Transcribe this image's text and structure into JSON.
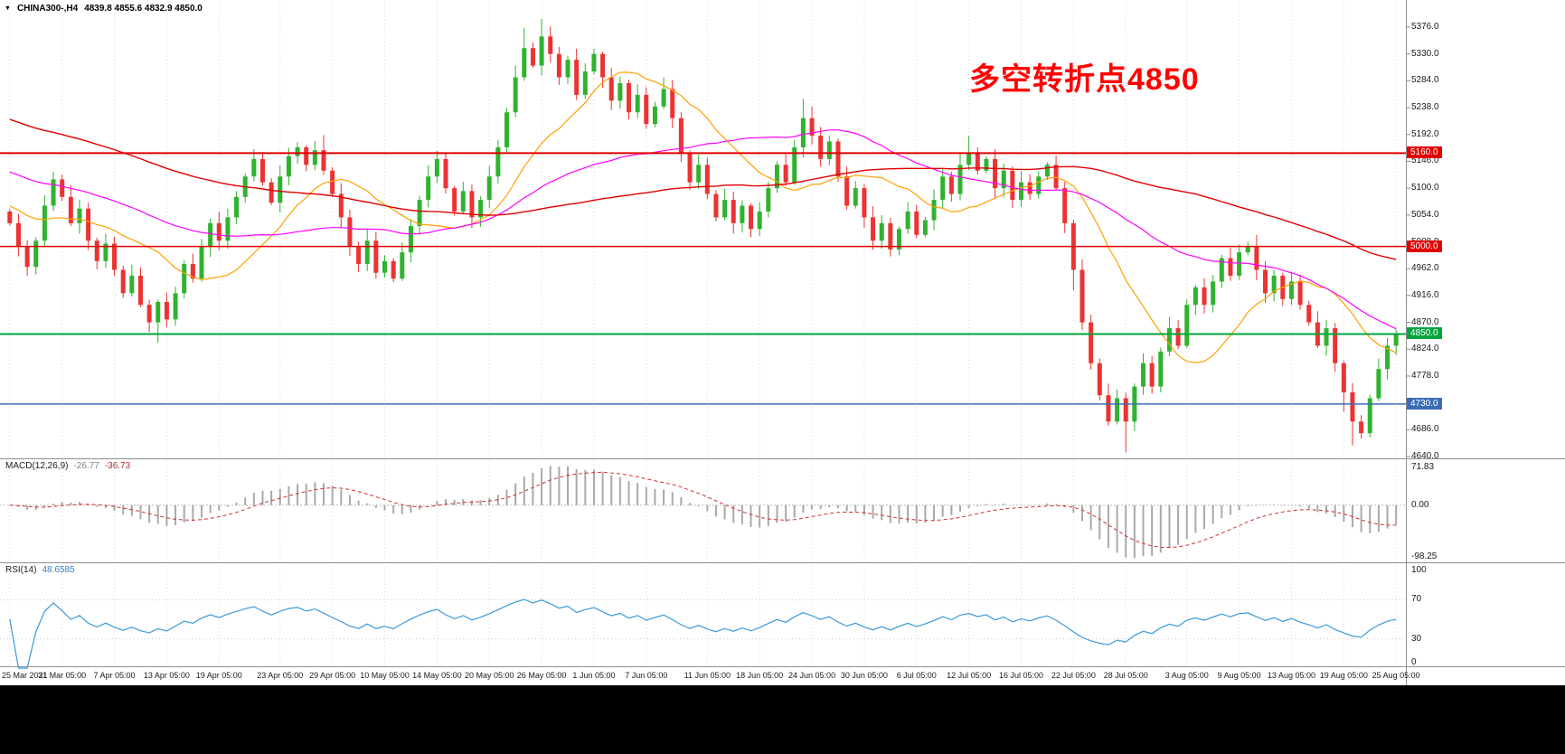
{
  "header": {
    "dropdown_icon": "▼",
    "symbol": "CHINA300-,H4",
    "ohlc": "4839.8 4855.6 4832.9 4850.0"
  },
  "annotation": {
    "text": "多空转折点4850",
    "color": "#FF0000"
  },
  "indicators": {
    "macd": {
      "name": "MACD(12,26,9)",
      "value_main": "-26.77",
      "value_signal": "-36.73",
      "range": [
        71.83,
        -98.25
      ],
      "axis": [
        {
          "text": "71.83",
          "value": 71.83
        },
        {
          "text": "0.00",
          "value": 0
        },
        {
          "text": "-98.25",
          "value": -98.25
        }
      ],
      "histogram_color": "#A9A9A9",
      "signal_color": "#D03030"
    },
    "rsi": {
      "name": "RSI(14)",
      "value": "48.6585",
      "axis": [
        {
          "text": "100",
          "value": 100
        },
        {
          "text": "70",
          "value": 70
        },
        {
          "text": "30",
          "value": 30
        },
        {
          "text": "0",
          "value": 0
        }
      ],
      "levels": [
        70,
        30
      ],
      "line_color": "#3A9AD9"
    }
  },
  "chart_data": {
    "type": "candlestick",
    "symbol": "CHINA300-",
    "timeframe": "H4",
    "current_price": 4850.0,
    "x_labels": [
      "25 Mar 2021",
      "31 Mar 05:00",
      "7 Apr 05:00",
      "13 Apr 05:00",
      "19 Apr 05:00",
      "23 Apr 05:00",
      "29 Apr 05:00",
      "10 May 05:00",
      "14 May 05:00",
      "20 May 05:00",
      "26 May 05:00",
      "1 Jun 05:00",
      "7 Jun 05:00",
      "11 Jun 05:00",
      "18 Jun 05:00",
      "24 Jun 05:00",
      "30 Jun 05:00",
      "6 Jul 05:00",
      "12 Jul 05:00",
      "16 Jul 05:00",
      "22 Jul 05:00",
      "28 Jul 05:00",
      "3 Aug 05:00",
      "9 Aug 05:00",
      "13 Aug 05:00",
      "19 Aug 05:00",
      "25 Aug 05:00"
    ],
    "y_ticks": [
      5376,
      5330,
      5284,
      5238,
      5192,
      5146,
      5100,
      5054,
      5008,
      4962,
      4916,
      4870,
      4824,
      4778,
      4732,
      4686,
      4640
    ],
    "y_tick_labels": [
      "5376.0",
      "5330.0",
      "5284.0",
      "5238.0",
      "5192.0",
      "5146.0",
      "5100.0",
      "5054.0",
      "5008.0",
      "4962.0",
      "4916.0",
      "4870.0",
      "4824.0",
      "4778.0",
      "4732.0",
      "4686.0",
      "4640.0"
    ],
    "first_open": 5060,
    "closes": [
      5040,
      5000,
      4965,
      5010,
      5070,
      5115,
      5085,
      5040,
      5065,
      5010,
      4975,
      5005,
      4960,
      4920,
      4950,
      4900,
      4870,
      4905,
      4875,
      4920,
      4970,
      4945,
      5000,
      5040,
      5010,
      5050,
      5085,
      5120,
      5150,
      5110,
      5075,
      5120,
      5155,
      5170,
      5140,
      5165,
      5130,
      5090,
      5050,
      5000,
      4970,
      5010,
      4955,
      4975,
      4945,
      4990,
      5035,
      5080,
      5120,
      5150,
      5100,
      5060,
      5095,
      5050,
      5080,
      5120,
      5170,
      5230,
      5290,
      5340,
      5310,
      5360,
      5330,
      5290,
      5320,
      5260,
      5300,
      5330,
      5290,
      5250,
      5280,
      5230,
      5260,
      5210,
      5240,
      5270,
      5220,
      5160,
      5110,
      5140,
      5090,
      5050,
      5080,
      5040,
      5070,
      5030,
      5060,
      5100,
      5140,
      5110,
      5170,
      5220,
      5190,
      5150,
      5180,
      5120,
      5070,
      5100,
      5050,
      5010,
      5040,
      4995,
      5030,
      5060,
      5020,
      5045,
      5080,
      5120,
      5090,
      5140,
      5160,
      5130,
      5150,
      5100,
      5130,
      5080,
      5110,
      5090,
      5120,
      5140,
      5100,
      5040,
      4960,
      4870,
      4800,
      4745,
      4700,
      4740,
      4700,
      4760,
      4800,
      4760,
      4820,
      4860,
      4830,
      4900,
      4930,
      4900,
      4940,
      4980,
      4950,
      4990,
      5000,
      4960,
      4920,
      4950,
      4910,
      4940,
      4900,
      4870,
      4830,
      4860,
      4800,
      4750,
      4700,
      4680,
      4740,
      4790,
      4830,
      4850
    ],
    "wick_spikes": {
      "17": [
        0,
        20
      ],
      "36": [
        15,
        0
      ],
      "59": [
        20,
        0
      ],
      "61": [
        25,
        0
      ],
      "91": [
        25,
        0
      ],
      "110": [
        15,
        0
      ],
      "122": [
        0,
        20
      ],
      "128": [
        0,
        35
      ],
      "153": [
        0,
        20
      ],
      "154": [
        0,
        30
      ]
    },
    "colors": {
      "up": "#2FB32F",
      "down": "#EC3232"
    },
    "moving_averages": [
      {
        "period": 14,
        "color": "#FFA000",
        "width": 1.2
      },
      {
        "period": 40,
        "color": "#FF00FF",
        "width": 1.2
      },
      {
        "period": 80,
        "color": "#E00000",
        "width": 1.4
      }
    ],
    "horizontal_lines": [
      {
        "price": 5160,
        "label": "5160.0",
        "color": "#E00000",
        "width": 2
      },
      {
        "price": 5000,
        "label": "5000.0",
        "color": "#E00000",
        "width": 1.5
      },
      {
        "price": 4850,
        "label": "4850.0",
        "color": "#00A43B",
        "width": 2
      },
      {
        "price": 4730,
        "label": "4730.0",
        "color": "#3B6CB5",
        "width": 1.5
      }
    ]
  }
}
